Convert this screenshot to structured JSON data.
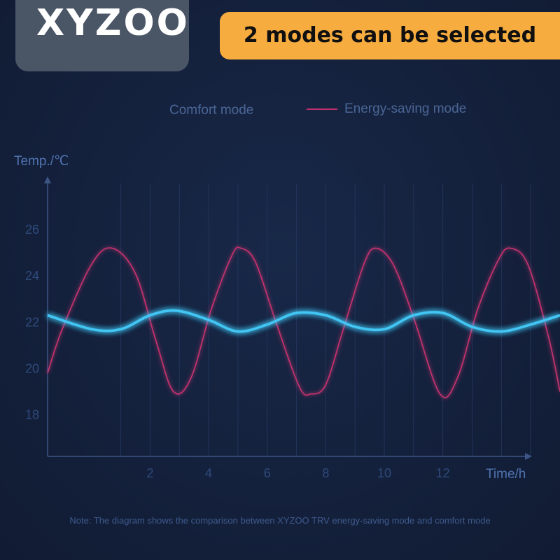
{
  "brand": {
    "logo_text": "XYZOO"
  },
  "banner": {
    "text": "2 modes can be selected"
  },
  "note": "Note: The diagram shows the comparison between XYZOO TRV energy-saving mode and comfort mode",
  "colors": {
    "comfort": "#43c6f4",
    "energy": "#c0306d",
    "axis": "#3d5585",
    "label": "#2e4a7c",
    "title": "#4f73b0"
  },
  "chart_data": {
    "type": "line",
    "ylabel": "Temp./℃",
    "xlabel": "Time/h",
    "x_ticks": [
      2,
      4,
      6,
      8,
      10,
      12
    ],
    "y_ticks": [
      18,
      20,
      22,
      24,
      26
    ],
    "xlim": [
      -1.5,
      16
    ],
    "ylim": [
      16.2,
      28
    ],
    "legend_position": "top",
    "grid": true,
    "series": [
      {
        "name": "Comfort mode",
        "color": "#43c6f4",
        "x": [
          -1.5,
          0,
          1,
          2,
          2.9,
          4,
          5,
          6,
          7,
          8,
          9,
          10,
          11,
          12,
          13,
          14,
          15,
          16
        ],
        "y": [
          22.3,
          21.7,
          21.7,
          22.3,
          22.5,
          22.1,
          21.6,
          21.9,
          22.4,
          22.3,
          21.8,
          21.7,
          22.3,
          22.4,
          21.8,
          21.6,
          21.9,
          22.3
        ]
      },
      {
        "name": "Energy-saving mode",
        "color": "#c0306d",
        "x": [
          -1.5,
          -1,
          0,
          0.7,
          1.5,
          2.2,
          2.8,
          3.4,
          4.1,
          4.8,
          5.1,
          5.6,
          6.3,
          7.1,
          7.5,
          8.0,
          8.6,
          9.3,
          9.7,
          10.3,
          11.0,
          11.9,
          12.5,
          13.2,
          13.9,
          14.3,
          14.9,
          15.6,
          16.0
        ],
        "y": [
          19.8,
          21.7,
          24.5,
          25.2,
          24.1,
          21.2,
          19.0,
          19.6,
          22.6,
          24.9,
          25.2,
          24.6,
          22.0,
          19.2,
          18.9,
          19.3,
          21.7,
          24.5,
          25.2,
          24.5,
          22.2,
          18.9,
          19.6,
          22.6,
          24.7,
          25.2,
          24.5,
          21.4,
          19.0
        ]
      }
    ]
  }
}
